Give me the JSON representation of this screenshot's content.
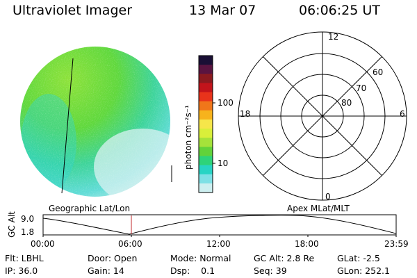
{
  "header": {
    "title": "Ultraviolet Imager",
    "date": "13 Mar 07",
    "time": "06:06:25 UT"
  },
  "colorbar": {
    "unit_label": "photon cm⁻²s⁻¹",
    "tick_labels": [
      "100",
      "10"
    ],
    "colors": [
      "#1a0f35",
      "#5a1440",
      "#8b1a1f",
      "#c2141b",
      "#e8331b",
      "#f0761a",
      "#f7b31c",
      "#f6e64a",
      "#d9ef3a",
      "#a5e23a",
      "#62d23a",
      "#2ed37a",
      "#28d4c4",
      "#7ee0e5",
      "#cdeff0"
    ]
  },
  "image_panel": {
    "label": "Geographic Lat/Lon",
    "colors": {
      "bright_green": "#7be03a",
      "green": "#4cd63c",
      "cyan": "#2fd4c8",
      "light": "#d8f2f2"
    }
  },
  "polar_plot": {
    "label": "Apex MLat/MLT",
    "mlt_labels": [
      "12",
      "6",
      "0",
      "18"
    ],
    "mlat_labels": [
      "60",
      "70",
      "80"
    ]
  },
  "altitude_plot": {
    "y_label": "GC Alt",
    "y_ticks": [
      "9.0",
      "1.8"
    ],
    "x_ticks": [
      "00:00",
      "06:00",
      "12:00",
      "18:00",
      "23:59"
    ],
    "marker_color": "#c0282d"
  },
  "info": {
    "filter": "Flt: LBHL",
    "door": "Door: Open",
    "mode": "Mode: Normal",
    "gc_alt": "GC Alt: 2.8 Re",
    "glat": "GLat:  -2.5",
    "ip": "IP: 36.0",
    "gain": "Gain: 14",
    "dsp": "Dsp:    0.1",
    "seq": "Seq: 39",
    "glon": "GLon: 252.1"
  }
}
